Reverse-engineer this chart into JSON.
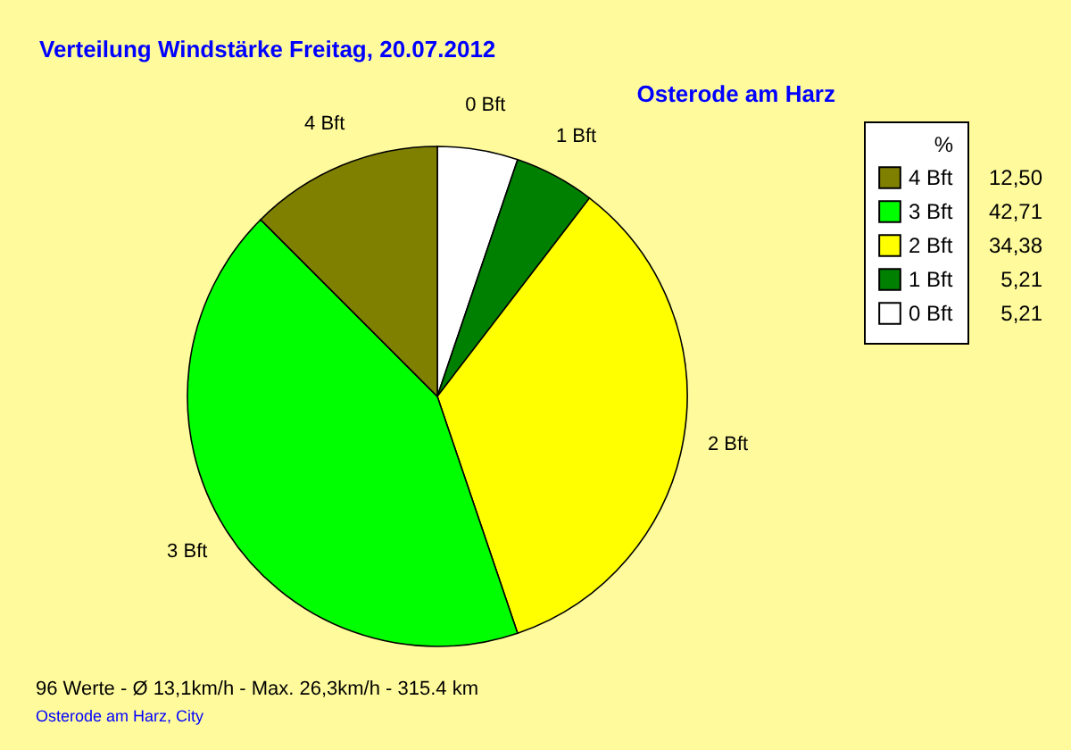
{
  "chart_data": {
    "type": "pie",
    "title": "Verteilung Windstärke  Freitag, 20.07.2012",
    "subtitle": "Osterode am Harz",
    "categories": [
      "0 Bft",
      "1 Bft",
      "2 Bft",
      "3 Bft",
      "4 Bft"
    ],
    "values": [
      5.21,
      5.21,
      34.38,
      42.71,
      12.5
    ],
    "value_labels": [
      "5,21",
      "5,21",
      "34,38",
      "42,71",
      "12,50"
    ],
    "colors": [
      "#ffffff",
      "#008000",
      "#ffff00",
      "#00ff00",
      "#808000"
    ],
    "legend_title": "%",
    "legend": "top right",
    "annotations": [
      "96 Werte   -   Ø 13,1km/h  -  Max. 26,3km/h   -   315.4 km",
      "Osterode am Harz, City"
    ]
  }
}
